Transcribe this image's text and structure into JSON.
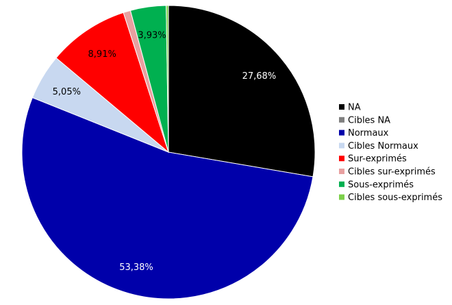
{
  "chart_data": {
    "type": "pie",
    "title": "",
    "legend_position": "right",
    "start": "top (12 o'clock), clockwise",
    "slices": [
      {
        "label": "NA",
        "value": 27.68,
        "value_label": "27,68%",
        "color": "#000000",
        "label_color": "#ffffff"
      },
      {
        "label": "Cibles NA",
        "value": 0.0,
        "value_label": "",
        "color": "#808080",
        "label_color": "#000000"
      },
      {
        "label": "Normaux",
        "value": 53.38,
        "value_label": "53,38%",
        "color": "#0000aa",
        "label_color": "#ffffff"
      },
      {
        "label": "Cibles Normaux",
        "value": 5.05,
        "value_label": "5,05%",
        "color": "#c8d8f0",
        "label_color": "#000000"
      },
      {
        "label": "Sur-exprimés",
        "value": 8.91,
        "value_label": "8,91%",
        "color": "#ff0000",
        "label_color": "#000000"
      },
      {
        "label": "Cibles sur-exprimés",
        "value": 0.8,
        "value_label": "",
        "color": "#e8a0a0",
        "label_color": "#000000"
      },
      {
        "label": "Sous-exprimés",
        "value": 3.93,
        "value_label": "3,93%",
        "color": "#00b050",
        "label_color": "#000000"
      },
      {
        "label": "Cibles sous-exprimés",
        "value": 0.25,
        "value_label": "",
        "color": "#7cd04a",
        "label_color": "#000000"
      }
    ]
  }
}
